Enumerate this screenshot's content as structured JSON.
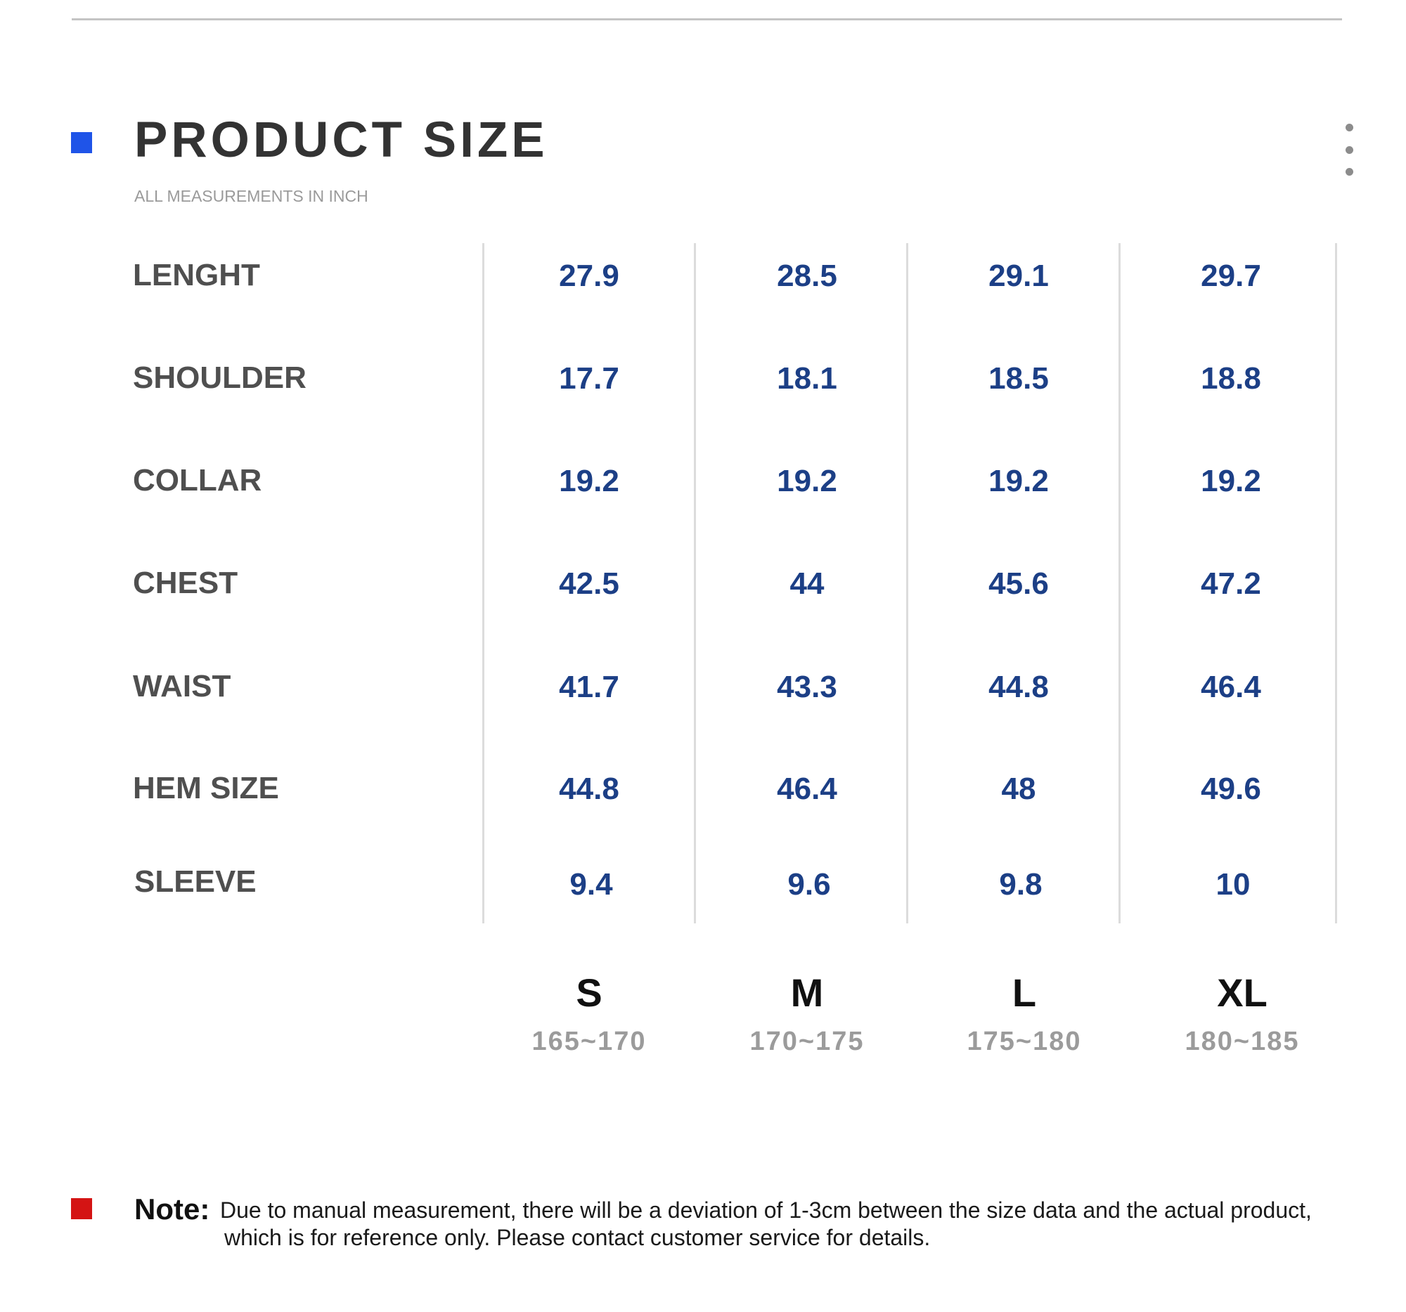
{
  "header": {
    "title": "PRODUCT SIZE",
    "subtitle": "ALL MEASUREMENTS IN INCH",
    "accent_color": "#1f54e8",
    "menu_icon": "more-vertical-icon"
  },
  "size_table": {
    "rows": [
      {
        "label": "LENGHT",
        "values": [
          "27.9",
          "28.5",
          "29.1",
          "29.7"
        ]
      },
      {
        "label": "SHOULDER",
        "values": [
          "17.7",
          "18.1",
          "18.5",
          "18.8"
        ]
      },
      {
        "label": "COLLAR",
        "values": [
          "19.2",
          "19.2",
          "19.2",
          "19.2"
        ]
      },
      {
        "label": "CHEST",
        "values": [
          "42.5",
          "44",
          "45.6",
          "47.2"
        ]
      },
      {
        "label": "WAIST",
        "values": [
          "41.7",
          "43.3",
          "44.8",
          "46.4"
        ]
      },
      {
        "label": "HEM SIZE",
        "values": [
          "44.8",
          "46.4",
          "48",
          "49.6"
        ]
      },
      {
        "label": "SLEEVE",
        "values": [
          "9.4",
          "9.6",
          "9.8",
          "10"
        ]
      }
    ],
    "sizes": [
      {
        "label": "S",
        "height": "165~170"
      },
      {
        "label": "M",
        "height": "170~175"
      },
      {
        "label": "L",
        "height": "175~180"
      },
      {
        "label": "XL",
        "height": "180~185"
      }
    ],
    "value_color": "#1c3f86"
  },
  "note": {
    "title": "Note:",
    "line1": "Due to manual measurement, there will be a deviation of 1-3cm between the size data and the actual product,",
    "line2": "which is for reference only. Please contact customer service for details.",
    "accent_color": "#d41414"
  }
}
